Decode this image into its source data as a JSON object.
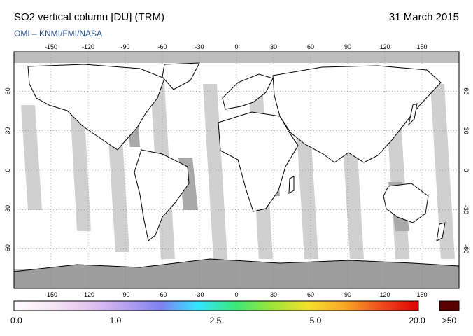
{
  "header": {
    "title": "SO2 vertical column [DU] (TRM)",
    "date": "31 March 2015",
    "source": "OMI  –  KNMI/FMI/NASA"
  },
  "map": {
    "lon_ticks": [
      "-150",
      "-120",
      "-90",
      "-60",
      "-30",
      "0",
      "30",
      "60",
      "90",
      "120",
      "150"
    ],
    "lat_ticks": [
      "60",
      "30",
      "0",
      "-30",
      "-60"
    ],
    "ocean_color": "#ffffff",
    "land_fill_color": "#9e9e9e",
    "swath_gap_color": "#d0d0d0"
  },
  "colorbar": {
    "labels": [
      "0.0",
      "1.0",
      "2.5",
      "5.0",
      "20.0"
    ],
    "overflow_label": ">50",
    "overflow_color": "#5a0000",
    "gradient_colors": [
      "#ffffff",
      "#f6e7f6",
      "#e6c6ef",
      "#b9a3f0",
      "#7f80f2",
      "#33e6ff",
      "#39e87a",
      "#9be53a",
      "#f5e02a",
      "#f9a726",
      "#ef4a1f",
      "#e00000"
    ]
  }
}
